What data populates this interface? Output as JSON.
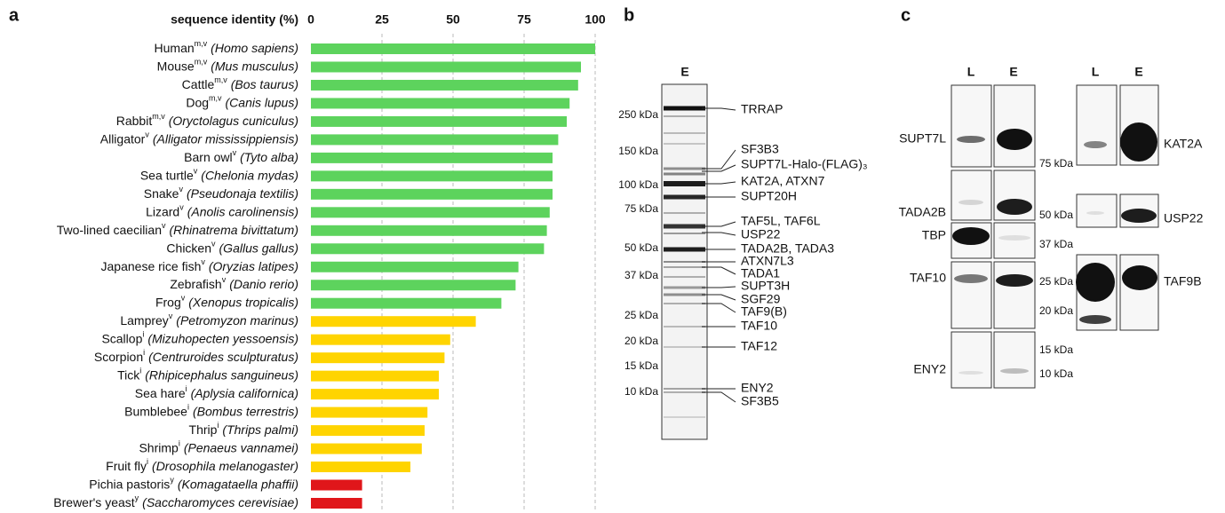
{
  "chart_data": {
    "type": "bar",
    "orientation": "horizontal",
    "x_label": "sequence identity (%)",
    "categories": [
      "Human",
      "Mouse",
      "Cattle",
      "Dog",
      "Rabbit",
      "Alligator",
      "Barn owl",
      "Sea turtle",
      "Snake",
      "Lizard",
      "Two-lined caecilian",
      "Chicken",
      "Japanese rice fish",
      "Zebrafish",
      "Frog",
      "Lamprey",
      "Scallop",
      "Scorpion",
      "Tick",
      "Sea hare",
      "Bumblebee",
      "Thrip",
      "Shrimp",
      "Fruit fly",
      "Pichia pastoris",
      "Brewer's yeast"
    ],
    "superscripts": [
      "m,v",
      "m,v",
      "m,v",
      "m,v",
      "m,v",
      "v",
      "v",
      "v",
      "v",
      "v",
      "v",
      "v",
      "v",
      "v",
      "v",
      "v",
      "i",
      "i",
      "i",
      "i",
      "i",
      "i",
      "i",
      "i",
      "y",
      "y"
    ],
    "species": [
      "(Homo sapiens)",
      "(Mus musculus)",
      "(Bos taurus)",
      "(Canis lupus)",
      "(Oryctolagus cuniculus)",
      "(Alligator mississippiensis)",
      "(Tyto alba)",
      "(Chelonia mydas)",
      "(Pseudonaja textilis)",
      "(Anolis carolinensis)",
      "(Rhinatrema bivittatum)",
      "(Gallus gallus)",
      "(Oryzias latipes)",
      "(Danio rerio)",
      "(Xenopus tropicalis)",
      "(Petromyzon marinus)",
      "(Mizuhopecten yessoensis)",
      "(Centruroides sculpturatus)",
      "(Rhipicephalus sanguineus)",
      "(Aplysia californica)",
      "(Bombus terrestris)",
      "(Thrips palmi)",
      "(Penaeus vannamei)",
      "(Drosophila melanogaster)",
      "(Komagataella phaffii)",
      "(Saccharomyces cerevisiae)"
    ],
    "values": [
      100,
      95,
      94,
      91,
      90,
      87,
      85,
      85,
      85,
      84,
      83,
      82,
      73,
      72,
      67,
      58,
      49,
      47,
      45,
      45,
      41,
      40,
      39,
      35,
      18,
      18
    ],
    "colors": [
      "#5dd35d",
      "#5dd35d",
      "#5dd35d",
      "#5dd35d",
      "#5dd35d",
      "#5dd35d",
      "#5dd35d",
      "#5dd35d",
      "#5dd35d",
      "#5dd35d",
      "#5dd35d",
      "#5dd35d",
      "#5dd35d",
      "#5dd35d",
      "#5dd35d",
      "#ffd400",
      "#ffd400",
      "#ffd400",
      "#ffd400",
      "#ffd400",
      "#ffd400",
      "#ffd400",
      "#ffd400",
      "#ffd400",
      "#e0161a",
      "#e0161a"
    ],
    "xlim": [
      0,
      100
    ],
    "xticks": [
      0,
      25,
      50,
      75,
      100
    ],
    "grid": true
  },
  "panel_labels": [
    "a",
    "b",
    "c"
  ],
  "gel_b": {
    "lane": "E",
    "markers": [
      "250 kDa",
      "150 kDa",
      "100 kDa",
      "75 kDa",
      "50 kDa",
      "37 kDa",
      "25 kDa",
      "20 kDa",
      "15 kDa",
      "10 kDa"
    ],
    "bands": [
      "TRRAP",
      "SF3B3",
      "SUPT7L-Halo-(FLAG)₃",
      "KAT2A, ATXN7",
      "SUPT20H",
      "TAF5L, TAF6L",
      "USP22",
      "TADA2B, TADA3",
      "ATXN7L3",
      "TADA1",
      "SUPT3H",
      "SGF29",
      "TAF9(B)",
      "TAF10",
      "TAF12",
      "ENY2",
      "SF3B5"
    ]
  },
  "blots_c": {
    "lanes": [
      "L",
      "E"
    ],
    "left_proteins": [
      "SUPT7L",
      "TADA2B",
      "TBP",
      "TAF10",
      "ENY2"
    ],
    "right_proteins": [
      "KAT2A",
      "USP22",
      "TAF9B"
    ],
    "markers": [
      "75 kDa",
      "50 kDa",
      "37 kDa",
      "25 kDa",
      "20 kDa",
      "15 kDa",
      "10 kDa"
    ]
  }
}
